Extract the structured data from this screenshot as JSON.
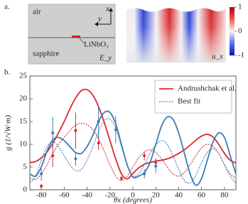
{
  "panel_a": {
    "label": "a.",
    "air": "air",
    "sapphire": "sapphire",
    "film": "LiNbO₃",
    "axis_x": "x",
    "axis_y": "y",
    "field_left": "E_y",
    "field_right": "u_x",
    "colorbar": {
      "clim": [
        -1,
        1
      ],
      "ticks": [
        1,
        0,
        -1
      ]
    }
  },
  "chart_data": {
    "type": "line",
    "label": "b.",
    "xlabel": "θx (degrees)",
    "ylabel": "g (1/√W·m)",
    "xlim": [
      -90,
      90
    ],
    "xticks": [
      -80,
      -60,
      -40,
      -20,
      0,
      20,
      40,
      60,
      80
    ],
    "ylim": [
      0,
      25
    ],
    "yticks": [
      0,
      5,
      10,
      15,
      20,
      25
    ],
    "legend": "upper right",
    "x": [
      -90,
      -85,
      -80,
      -75,
      -70,
      -65,
      -60,
      -55,
      -50,
      -45,
      -40,
      -35,
      -30,
      -25,
      -20,
      -15,
      -10,
      -5,
      0,
      5,
      10,
      15,
      20,
      25,
      30,
      35,
      40,
      45,
      50,
      55,
      60,
      65,
      70,
      75,
      80,
      85,
      90
    ],
    "series": [
      {
        "name": "Andrushchak et al.",
        "color": "#d62a2f",
        "style": "solid",
        "values": [
          6,
          6.2,
          7,
          8.3,
          10.2,
          12.5,
          15,
          17.8,
          20.2,
          21.8,
          22,
          20.8,
          18.3,
          14.8,
          10.8,
          6.8,
          3.5,
          2.4,
          3.6,
          4.8,
          5.6,
          6,
          6.3,
          6.5,
          6.8,
          7.3,
          8,
          8.8,
          9.8,
          10.9,
          11.8,
          12.2,
          11.6,
          10,
          8,
          6.5,
          5.9
        ]
      },
      {
        "name": "Best fit",
        "color": "#d62a2f",
        "style": "dotted",
        "values": [
          2.5,
          2.3,
          3.5,
          5.5,
          8,
          10,
          11.5,
          13,
          14.2,
          14.6,
          14.3,
          13.2,
          11.2,
          8.5,
          5.5,
          3,
          2,
          3,
          5,
          7,
          8.3,
          8.8,
          8.2,
          6.8,
          5,
          3.5,
          3,
          3.8,
          5.5,
          7.5,
          9.2,
          10,
          9.5,
          8,
          5.5,
          3.5,
          2.5
        ]
      },
      {
        "color": "#3d7bb3",
        "style": "solid",
        "values": [
          3.5,
          3,
          5,
          8.5,
          11,
          11.5,
          10.8,
          9.5,
          8.2,
          8,
          9.5,
          12,
          15,
          17,
          17,
          14.5,
          10,
          5.5,
          2.8,
          3,
          3.8,
          6,
          10,
          14,
          16,
          15.5,
          12.5,
          8,
          3.5,
          1,
          2.5,
          6.5,
          10.5,
          12.5,
          11.5,
          7.5,
          3.5
        ]
      },
      {
        "color": "#3d7bb3",
        "style": "dotted",
        "values": [
          1.5,
          3,
          6.5,
          9.5,
          10.5,
          9.5,
          7.5,
          5.5,
          4.2,
          4.5,
          6.5,
          9.5,
          12.8,
          15.2,
          15.5,
          13.5,
          9.5,
          5.5,
          3,
          3.5,
          5.5,
          8,
          9.8,
          10.8,
          10,
          7.5,
          4.5,
          2,
          1.5,
          3.2,
          6,
          8.2,
          9,
          8,
          5.5,
          3,
          1.5
        ]
      }
    ],
    "points": [
      {
        "color": "#d62a2f",
        "x": [
          -80,
          -70,
          -50,
          -30,
          -10,
          10,
          20
        ],
        "values": [
          0.8,
          7.5,
          13,
          10.3,
          2.5,
          7.5,
          6
        ],
        "errors": [
          0.5,
          2.5,
          4,
          1.5,
          0.5,
          1,
          1
        ]
      },
      {
        "color": "#3d7bb3",
        "x": [
          -80,
          -70,
          -50,
          -30,
          -15,
          10,
          20
        ],
        "values": [
          3.5,
          12.5,
          6.8,
          15,
          13.2,
          3.5,
          5.2
        ],
        "errors": [
          1.5,
          3.5,
          1.5,
          3.5,
          3,
          1,
          1.5
        ]
      }
    ]
  }
}
